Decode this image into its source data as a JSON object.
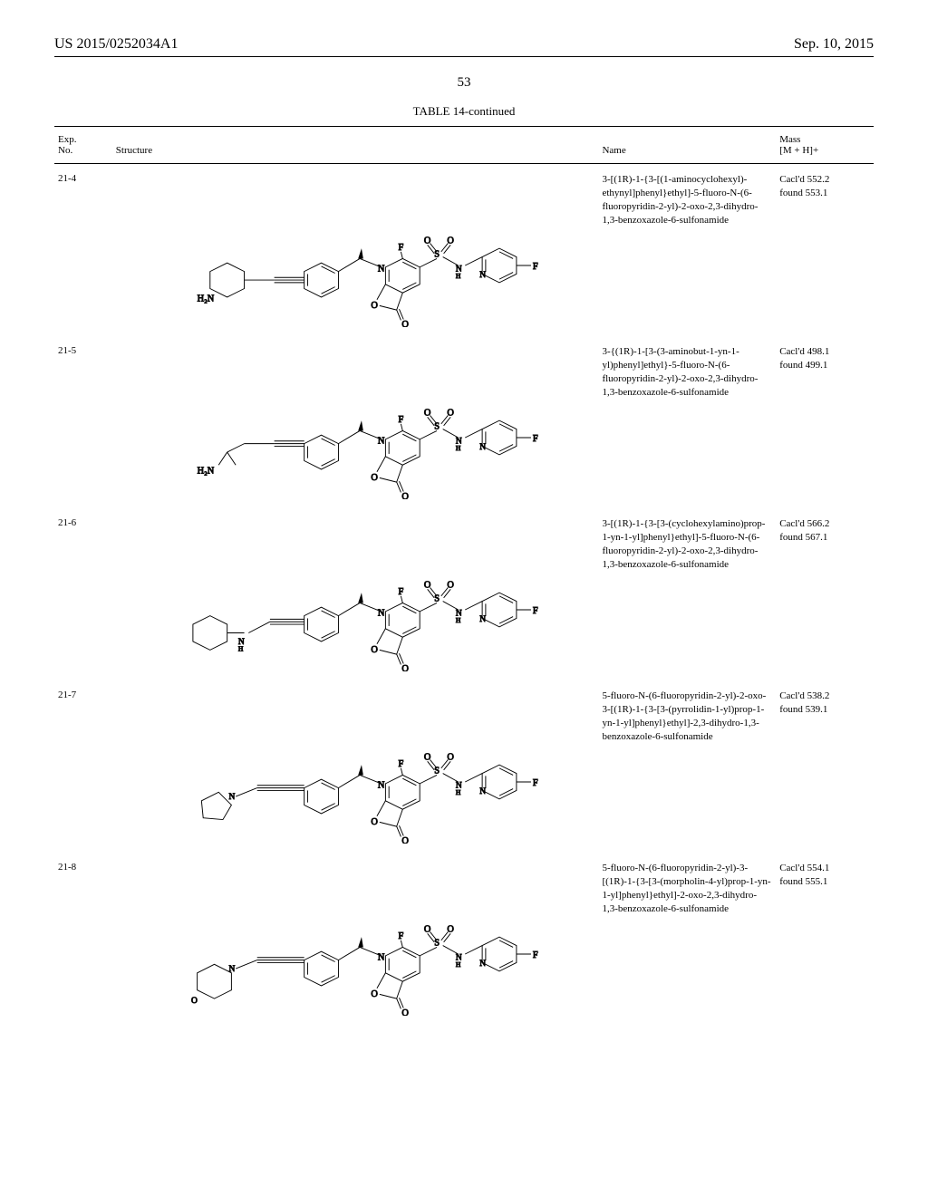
{
  "header": {
    "patent_number": "US 2015/0252034A1",
    "date": "Sep. 10, 2015"
  },
  "page_number": "53",
  "table_title": "TABLE 14-continued",
  "columns": {
    "exp": "Exp.\nNo.",
    "structure": "Structure",
    "name": "Name",
    "mass": "Mass\n[M + H]+"
  },
  "rows": [
    {
      "exp": "21-4",
      "name": "3-[(1R)-1-{3-[(1-aminocyclohexyl)-ethynyl]phenyl}ethyl]-5-fluoro-N-(6-fluoropyridin-2-yl)-2-oxo-2,3-dihydro-1,3-benzoxazole-6-sulfonamide",
      "mass_calc": "Cacl'd 552.2",
      "mass_found": "found 553.1",
      "left_label": "H₂N"
    },
    {
      "exp": "21-5",
      "name": "3-{(1R)-1-[3-(3-aminobut-1-yn-1-yl)phenyl]ethyl}-5-fluoro-N-(6-fluoropyridin-2-yl)-2-oxo-2,3-dihydro-1,3-benzoxazole-6-sulfonamide",
      "mass_calc": "Cacl'd 498.1",
      "mass_found": "found 499.1",
      "left_label": "H₂N"
    },
    {
      "exp": "21-6",
      "name": "3-[(1R)-1-{3-[3-(cyclohexylamino)prop-1-yn-1-yl]phenyl}ethyl]-5-fluoro-N-(6-fluoropyridin-2-yl)-2-oxo-2,3-dihydro-1,3-benzoxazole-6-sulfonamide",
      "mass_calc": "Cacl'd 566.2",
      "mass_found": "found 567.1",
      "left_label": ""
    },
    {
      "exp": "21-7",
      "name": "5-fluoro-N-(6-fluoropyridin-2-yl)-2-oxo-3-[(1R)-1-{3-[3-(pyrrolidin-1-yl)prop-1-yn-1-yl]phenyl}ethyl]-2,3-dihydro-1,3-benzoxazole-6-sulfonamide",
      "mass_calc": "Cacl'd 538.2",
      "mass_found": "found 539.1",
      "left_label": ""
    },
    {
      "exp": "21-8",
      "name": "5-fluoro-N-(6-fluoropyridin-2-yl)-3-[(1R)-1-{3-[3-(morpholin-4-yl)prop-1-yn-1-yl]phenyl}ethyl]-2-oxo-2,3-dihydro-1,3-benzoxazole-6-sulfonamide",
      "mass_calc": "Cacl'd 554.1",
      "mass_found": "found 555.1",
      "left_label": ""
    }
  ],
  "structure_labels": {
    "F": "F",
    "O": "O",
    "S": "S",
    "N": "N",
    "NH": "N\nH",
    "H2N": "H₂N"
  }
}
